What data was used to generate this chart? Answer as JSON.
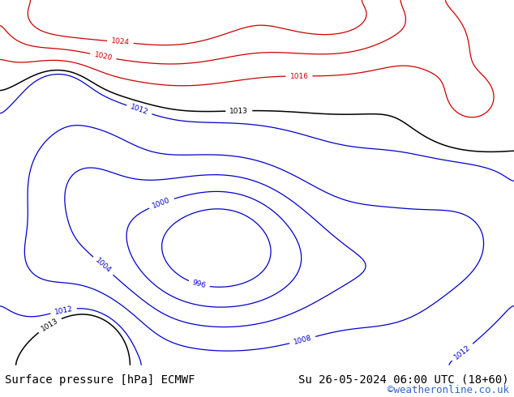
{
  "title_left": "Surface pressure [hPa] ECMWF",
  "title_right": "Su 26-05-2024 06:00 UTC (18+60)",
  "watermark": "©weatheronline.co.uk",
  "watermark_color": "#3366cc",
  "bg_color": "#ffffff",
  "land_color": "#c8e6a0",
  "sea_color": "#d8ecf8",
  "border_color": "#888888",
  "coast_color": "#888888",
  "contour_blue": "#0000cc",
  "contour_red": "#cc0000",
  "contour_black": "#000000",
  "footer_fontsize": 10,
  "watermark_fontsize": 9,
  "figsize": [
    6.34,
    4.9
  ],
  "dpi": 100,
  "lon_min": 22,
  "lon_max": 107,
  "lat_min": 4,
  "lat_max": 56
}
